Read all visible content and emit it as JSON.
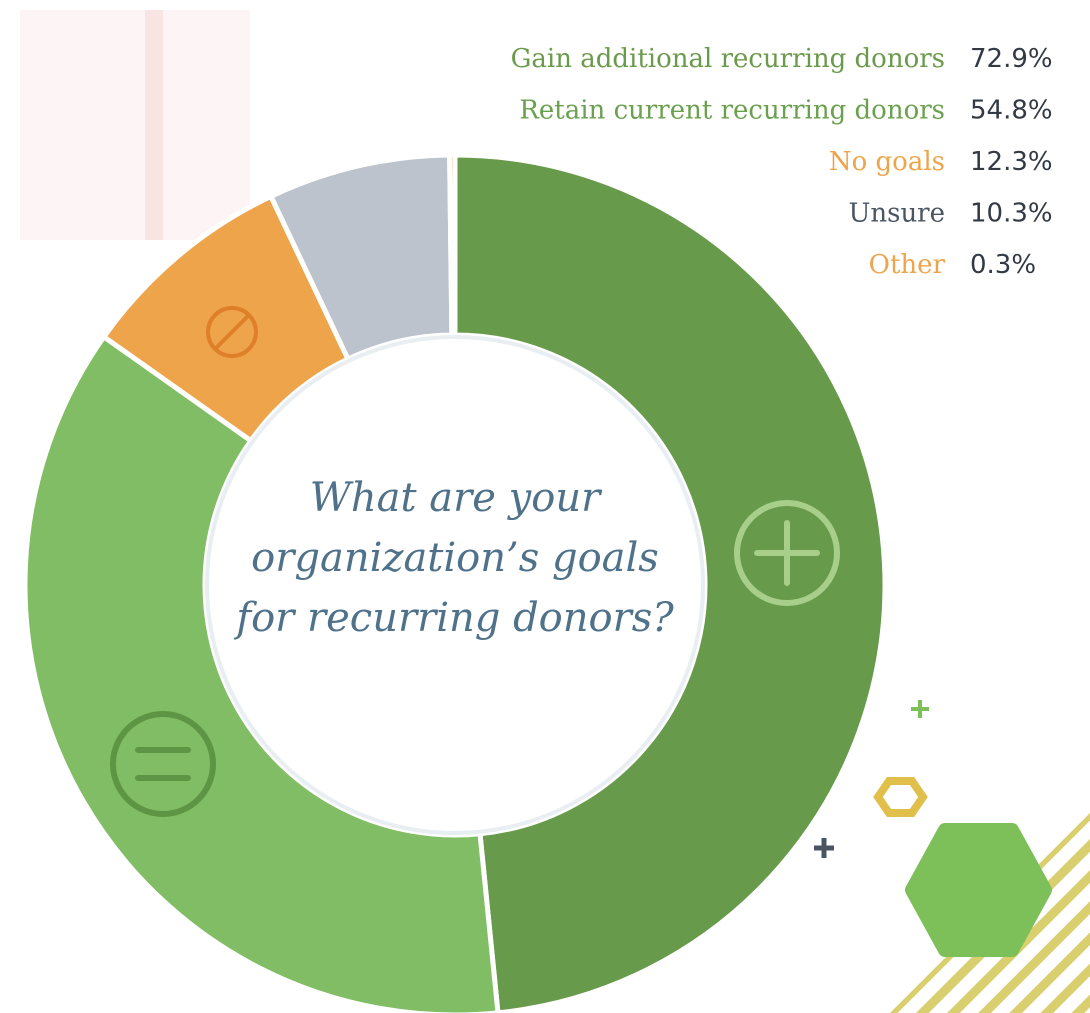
{
  "chart_data": {
    "type": "donut",
    "title": "What are your organization’s goals for recurring donors?",
    "categories": [
      "Gain additional recurring donors",
      "Retain current recurring donors",
      "No goals",
      "Unsure",
      "Other"
    ],
    "values": [
      72.9,
      54.8,
      12.3,
      10.3,
      0.3
    ],
    "value_labels": [
      "72.9%",
      "54.8%",
      "12.3%",
      "10.3%",
      "0.3%"
    ],
    "colors": [
      "#689a4b",
      "#80bd64",
      "#eea44b",
      "#bcc3cc",
      "#eea44b"
    ],
    "label_colors": [
      "#6a9a4c",
      "#6aa04e",
      "#eea44b",
      "#4a5563",
      "#eea44b"
    ]
  }
}
